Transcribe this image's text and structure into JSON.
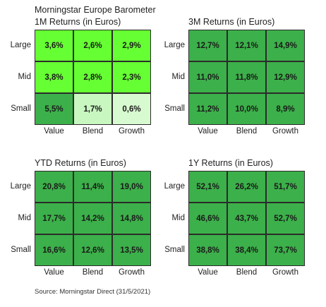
{
  "header": {
    "title": "Morningstar Europe Barometer"
  },
  "source": "Source: Morningstar Direct (31/5/2021)",
  "rows": [
    "Large",
    "Mid",
    "Small"
  ],
  "columns": [
    "Value",
    "Blend",
    "Growth"
  ],
  "chart_data": [
    {
      "type": "heatmap",
      "title": "1M Returns (in Euros)",
      "rows": [
        "Large",
        "Mid",
        "Small"
      ],
      "columns": [
        "Value",
        "Blend",
        "Growth"
      ],
      "values": [
        [
          3.6,
          2.6,
          2.9
        ],
        [
          3.8,
          2.8,
          2.3
        ],
        [
          5.5,
          1.7,
          0.6
        ]
      ],
      "labels": [
        [
          "3,6%",
          "2,6%",
          "2,9%"
        ],
        [
          "3,8%",
          "2,8%",
          "2,3%"
        ],
        [
          "5,5%",
          "1,7%",
          "0,6%"
        ]
      ],
      "colors": [
        [
          "#66ff33",
          "#66ff33",
          "#66ff33"
        ],
        [
          "#66ff33",
          "#66ff33",
          "#66ff33"
        ],
        [
          "#3cb04a",
          "#c8f7c0",
          "#d8fad0"
        ]
      ]
    },
    {
      "type": "heatmap",
      "title": "3M Returns (in Euros)",
      "rows": [
        "Large",
        "Mid",
        "Small"
      ],
      "columns": [
        "Value",
        "Blend",
        "Growth"
      ],
      "values": [
        [
          12.7,
          12.1,
          14.9
        ],
        [
          11.0,
          11.8,
          12.9
        ],
        [
          11.2,
          10.0,
          8.9
        ]
      ],
      "labels": [
        [
          "12,7%",
          "12,1%",
          "14,9%"
        ],
        [
          "11,0%",
          "11,8%",
          "12,9%"
        ],
        [
          "11,2%",
          "10,0%",
          "8,9%"
        ]
      ],
      "colors": [
        [
          "#3cb04a",
          "#3cb04a",
          "#3cb04a"
        ],
        [
          "#3cb04a",
          "#3cb04a",
          "#3cb04a"
        ],
        [
          "#3cb04a",
          "#3cb04a",
          "#3cb04a"
        ]
      ]
    },
    {
      "type": "heatmap",
      "title": "YTD Returns (in Euros)",
      "rows": [
        "Large",
        "Mid",
        "Small"
      ],
      "columns": [
        "Value",
        "Blend",
        "Growth"
      ],
      "values": [
        [
          20.8,
          11.4,
          19.0
        ],
        [
          17.7,
          14.2,
          14.8
        ],
        [
          16.6,
          12.6,
          13.5
        ]
      ],
      "labels": [
        [
          "20,8%",
          "11,4%",
          "19,0%"
        ],
        [
          "17,7%",
          "14,2%",
          "14,8%"
        ],
        [
          "16,6%",
          "12,6%",
          "13,5%"
        ]
      ],
      "colors": [
        [
          "#3cb04a",
          "#3cb04a",
          "#3cb04a"
        ],
        [
          "#3cb04a",
          "#3cb04a",
          "#3cb04a"
        ],
        [
          "#3cb04a",
          "#3cb04a",
          "#3cb04a"
        ]
      ]
    },
    {
      "type": "heatmap",
      "title": "1Y Returns (in Euros)",
      "rows": [
        "Large",
        "Mid",
        "Small"
      ],
      "columns": [
        "Value",
        "Blend",
        "Growth"
      ],
      "values": [
        [
          52.1,
          26.2,
          51.7
        ],
        [
          46.6,
          43.7,
          52.7
        ],
        [
          38.8,
          38.4,
          73.7
        ]
      ],
      "labels": [
        [
          "52,1%",
          "26,2%",
          "51,7%"
        ],
        [
          "46,6%",
          "43,7%",
          "52,7%"
        ],
        [
          "38,8%",
          "38,4%",
          "73,7%"
        ]
      ],
      "colors": [
        [
          "#3cb04a",
          "#3cb04a",
          "#3cb04a"
        ],
        [
          "#3cb04a",
          "#3cb04a",
          "#3cb04a"
        ],
        [
          "#3cb04a",
          "#3cb04a",
          "#3cb04a"
        ]
      ]
    }
  ]
}
